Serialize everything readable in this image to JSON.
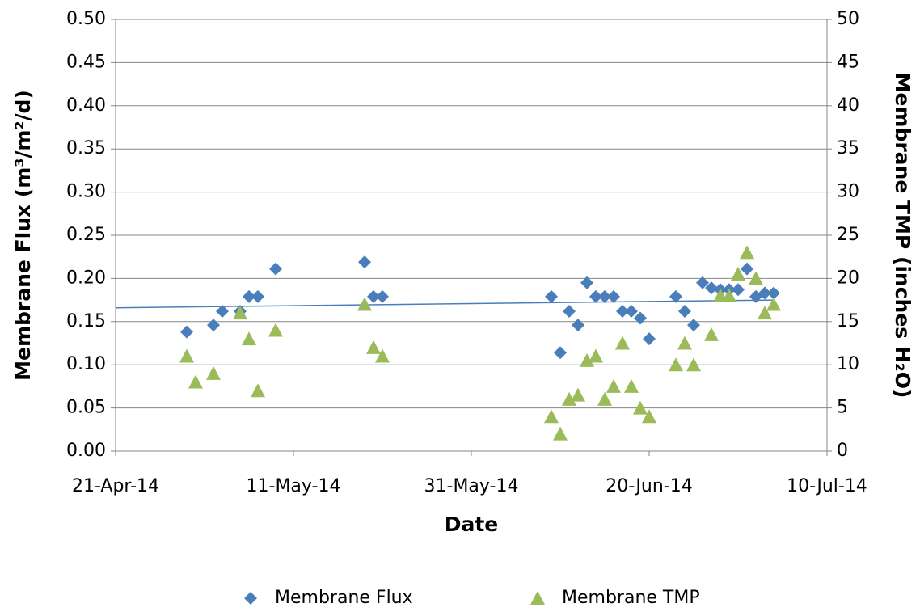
{
  "chart_data": {
    "type": "scatter",
    "x_label": "Date",
    "y_label": "Membrane Flux (m³/m²/d)",
    "y2_label": "Membrane TMP (inches H₂O)",
    "xlim": [
      "2014-04-21",
      "2014-07-10"
    ],
    "xticks": [
      {
        "value": "2014-04-21",
        "label": "21-Apr-14"
      },
      {
        "value": "2014-05-11",
        "label": "11-May-14"
      },
      {
        "value": "2014-05-31",
        "label": "31-May-14"
      },
      {
        "value": "2014-06-20",
        "label": "20-Jun-14"
      },
      {
        "value": "2014-07-10",
        "label": "10-Jul-14"
      }
    ],
    "ylim": [
      0,
      0.5
    ],
    "yticks": [
      {
        "value": 0,
        "label": "0.00"
      },
      {
        "value": 0.05,
        "label": "0.05"
      },
      {
        "value": 0.1,
        "label": "0.10"
      },
      {
        "value": 0.15,
        "label": "0.15"
      },
      {
        "value": 0.2,
        "label": "0.20"
      },
      {
        "value": 0.25,
        "label": "0.25"
      },
      {
        "value": 0.3,
        "label": "0.30"
      },
      {
        "value": 0.35,
        "label": "0.35"
      },
      {
        "value": 0.4,
        "label": "0.40"
      },
      {
        "value": 0.45,
        "label": "0.45"
      },
      {
        "value": 0.5,
        "label": "0.50"
      }
    ],
    "y2lim": [
      0,
      50
    ],
    "y2ticks": [
      0,
      5,
      10,
      15,
      20,
      25,
      30,
      35,
      40,
      45,
      50
    ],
    "grid": true,
    "legend": "bottom",
    "series": [
      {
        "name": "Membrane Flux",
        "color": "#4a7ebb",
        "marker": "diamond",
        "x": [
          "2014-04-29",
          "2014-05-02",
          "2014-05-03",
          "2014-05-05",
          "2014-05-06",
          "2014-05-07",
          "2014-05-09",
          "2014-05-19",
          "2014-05-20",
          "2014-05-21",
          "2014-06-09",
          "2014-06-10",
          "2014-06-11",
          "2014-06-12",
          "2014-06-13",
          "2014-06-14",
          "2014-06-15",
          "2014-06-16",
          "2014-06-17",
          "2014-06-18",
          "2014-06-19",
          "2014-06-20",
          "2014-06-23",
          "2014-06-24",
          "2014-06-25",
          "2014-06-26",
          "2014-06-27",
          "2014-06-28",
          "2014-06-29",
          "2014-06-30",
          "2014-07-01",
          "2014-07-02",
          "2014-07-03",
          "2014-07-04"
        ],
        "values": [
          0.138,
          0.146,
          0.162,
          0.162,
          0.179,
          0.179,
          0.211,
          0.219,
          0.179,
          0.179,
          0.179,
          0.114,
          0.162,
          0.146,
          0.195,
          0.179,
          0.179,
          0.179,
          0.162,
          0.162,
          0.154,
          0.13,
          0.179,
          0.162,
          0.146,
          0.195,
          0.189,
          0.187,
          0.187,
          0.187,
          0.211,
          0.179,
          0.183,
          0.183
        ]
      },
      {
        "name": "Membrane TMP",
        "color": "#9bbb59",
        "marker": "triangle",
        "axis": "y2",
        "x": [
          "2014-04-29",
          "2014-04-30",
          "2014-05-02",
          "2014-05-05",
          "2014-05-06",
          "2014-05-07",
          "2014-05-09",
          "2014-05-19",
          "2014-05-20",
          "2014-05-21",
          "2014-06-09",
          "2014-06-10",
          "2014-06-11",
          "2014-06-12",
          "2014-06-13",
          "2014-06-14",
          "2014-06-15",
          "2014-06-16",
          "2014-06-17",
          "2014-06-18",
          "2014-06-19",
          "2014-06-20",
          "2014-06-23",
          "2014-06-24",
          "2014-06-25",
          "2014-06-27",
          "2014-06-28",
          "2014-06-29",
          "2014-06-30",
          "2014-07-01",
          "2014-07-02",
          "2014-07-03",
          "2014-07-04"
        ],
        "values": [
          11,
          8,
          9,
          16,
          13,
          7,
          14,
          17,
          12,
          11,
          4,
          2,
          6,
          6.5,
          10.5,
          11,
          6,
          7.5,
          12.5,
          7.5,
          5,
          4,
          10,
          12.5,
          10,
          13.5,
          18,
          18,
          20.5,
          23,
          20,
          16,
          17
        ]
      }
    ],
    "trendline": {
      "color": "#4a7ebb",
      "x": [
        "2014-04-21",
        "2014-07-04"
      ],
      "values": [
        0.166,
        0.175
      ]
    }
  }
}
